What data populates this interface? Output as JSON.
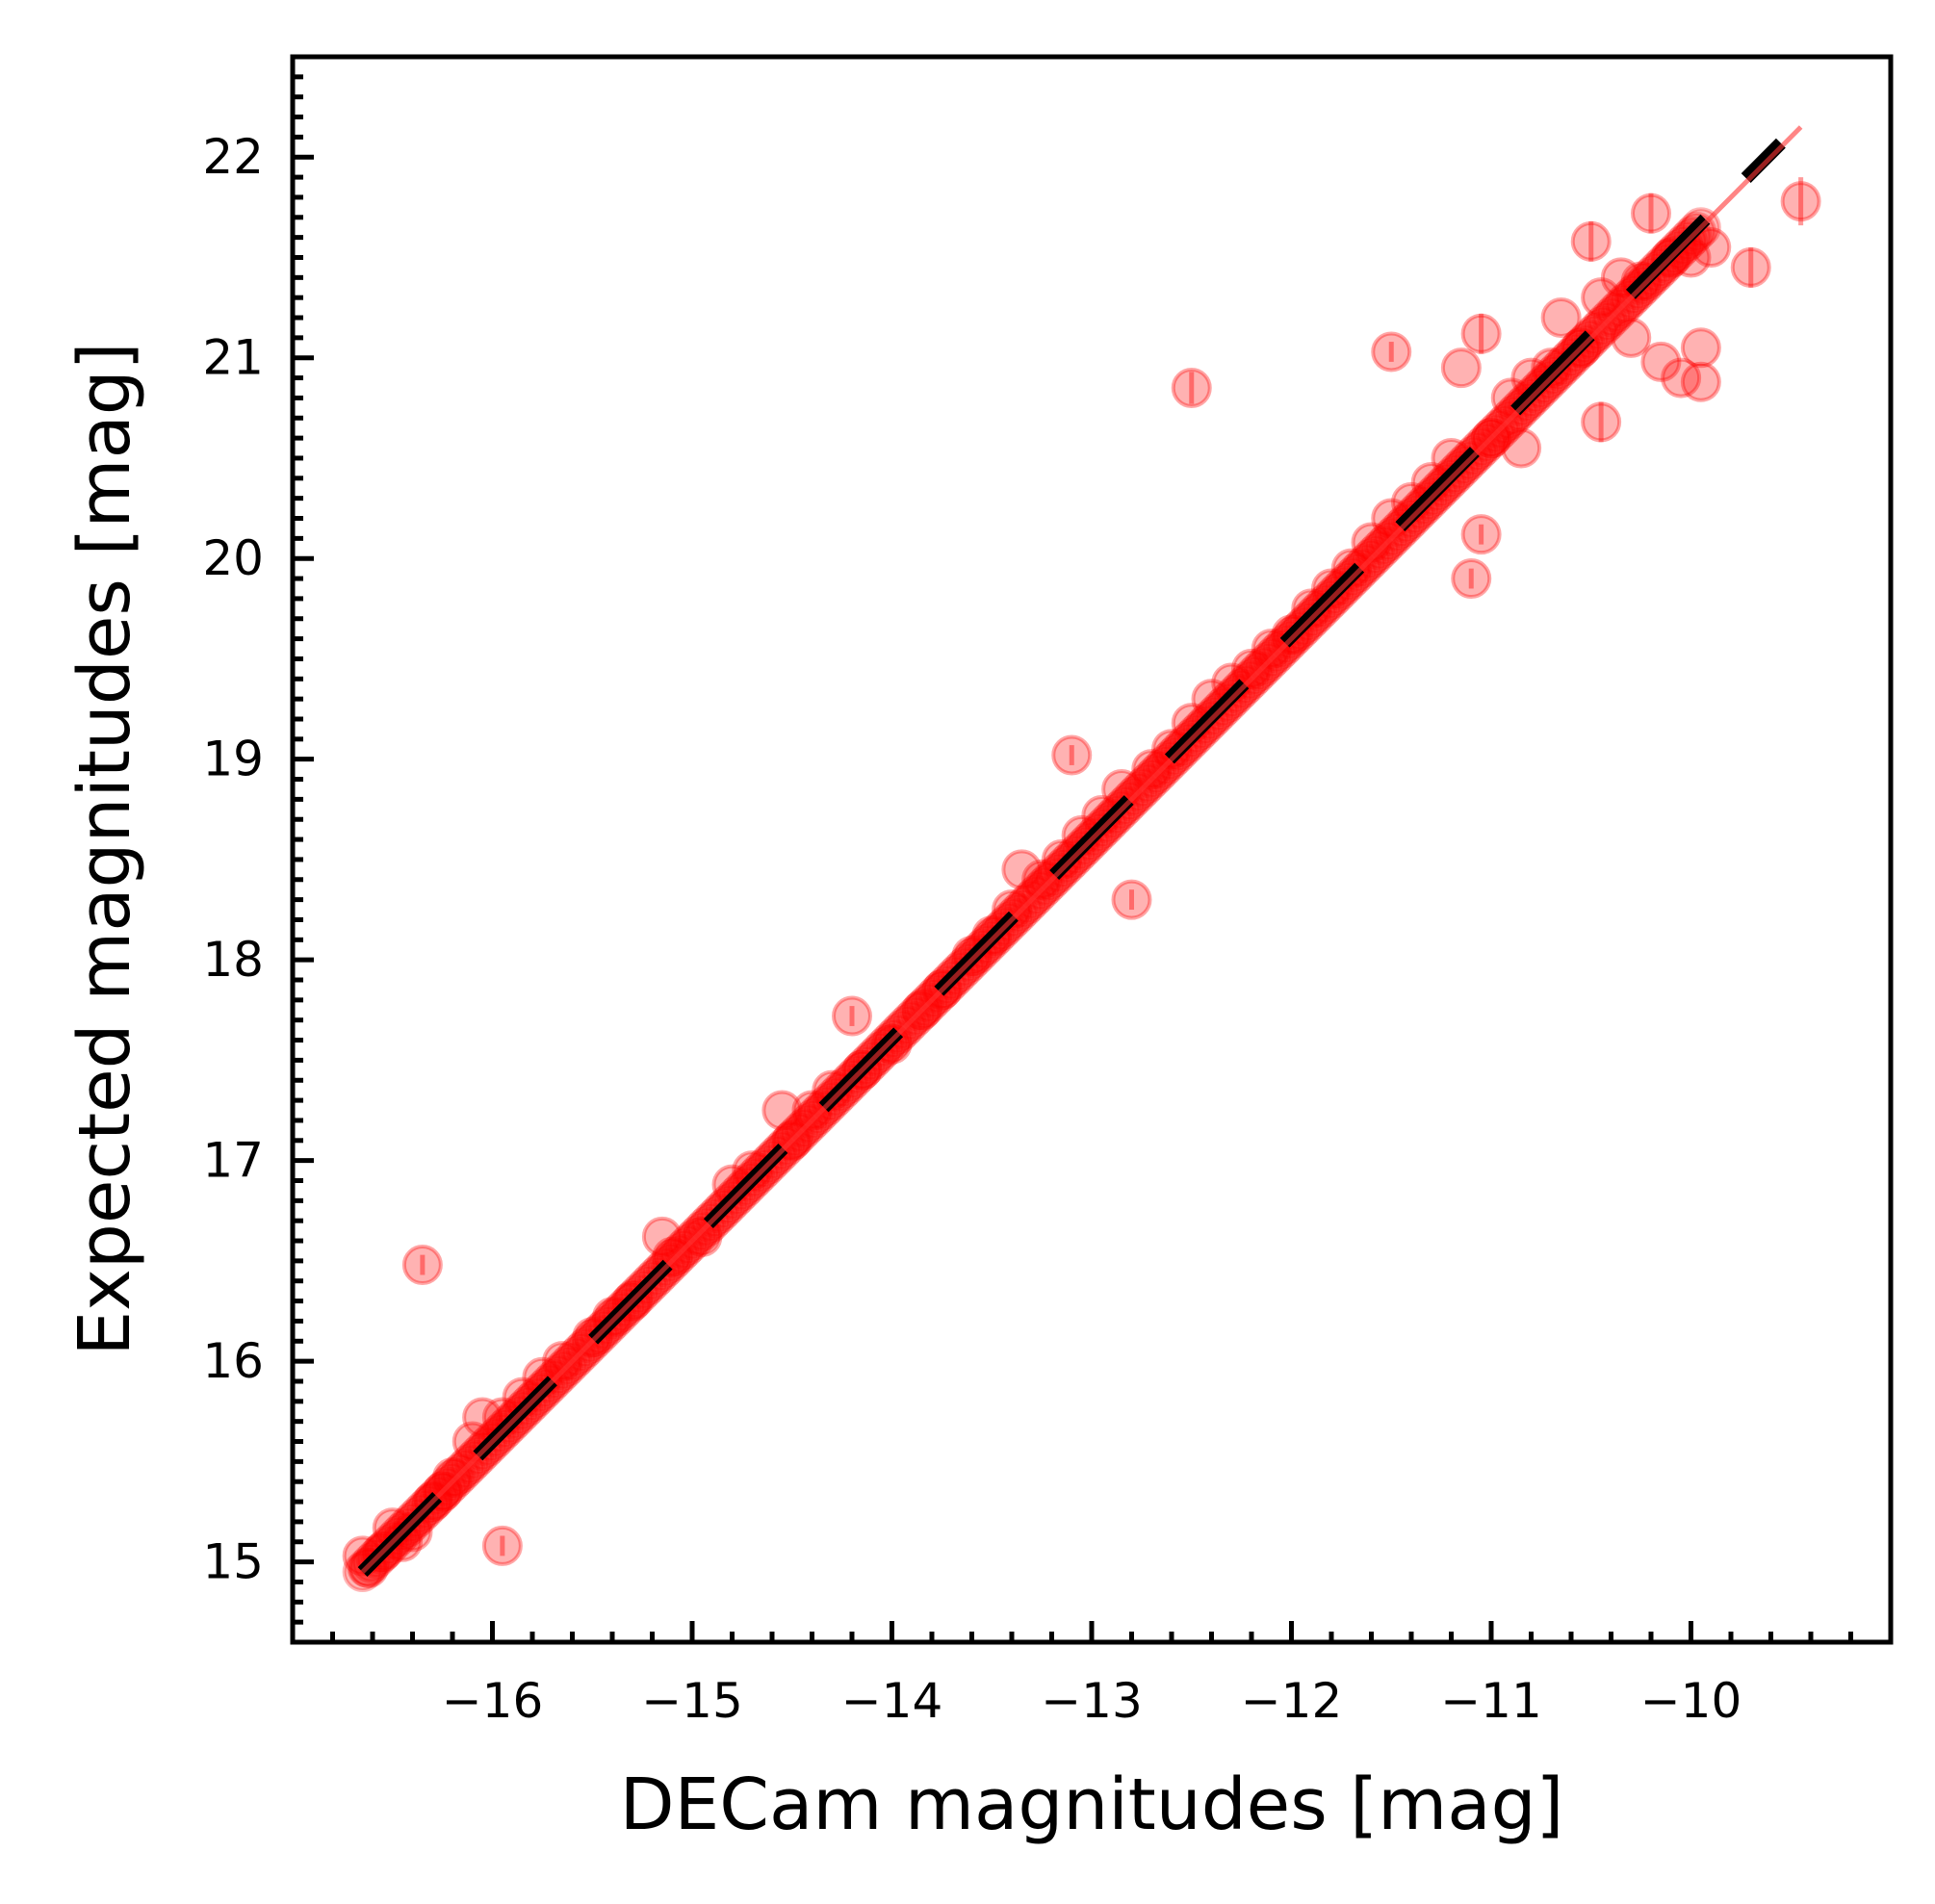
{
  "chart_data": {
    "type": "scatter",
    "xlabel": "DECam magnitudes [mag]",
    "ylabel": "Expected magnitudes [mag]",
    "xlim": [
      -17.0,
      -9.0
    ],
    "ylim": [
      14.6,
      22.5
    ],
    "x_ticks": [
      -16,
      -15,
      -14,
      -13,
      -12,
      -11,
      -10
    ],
    "x_tick_labels": [
      "−16",
      "−15",
      "−14",
      "−13",
      "−12",
      "−11",
      "−10"
    ],
    "y_ticks": [
      15,
      16,
      17,
      18,
      19,
      20,
      21,
      22
    ],
    "y_tick_labels": [
      "15",
      "16",
      "17",
      "18",
      "19",
      "20",
      "21",
      "22"
    ],
    "grid": false,
    "colors": {
      "points": "#ff0000",
      "reference_line": "#000000",
      "fit_line": "#ff3333"
    },
    "reference_line": {
      "style": "dashed",
      "color": "black",
      "x": [
        -16.65,
        -9.55
      ],
      "y": [
        14.95,
        22.07
      ]
    },
    "fit_line": {
      "color": "red",
      "x": [
        -16.65,
        -9.45
      ],
      "y": [
        14.95,
        22.15
      ]
    },
    "series": [
      {
        "marker": "circle",
        "color": "#ff0000",
        "alpha": 0.3,
        "points": [
          {
            "x": -16.65,
            "y": 15.03
          },
          {
            "x": -16.62,
            "y": 14.97
          },
          {
            "x": -16.55,
            "y": 15.05
          },
          {
            "x": -16.5,
            "y": 15.17
          },
          {
            "x": -16.45,
            "y": 15.1
          },
          {
            "x": -16.4,
            "y": 15.15
          },
          {
            "x": -16.35,
            "y": 16.48,
            "yerr": 0.05
          },
          {
            "x": -16.3,
            "y": 15.3
          },
          {
            "x": -16.25,
            "y": 15.35
          },
          {
            "x": -16.2,
            "y": 15.42
          },
          {
            "x": -16.1,
            "y": 15.6
          },
          {
            "x": -16.05,
            "y": 15.72
          },
          {
            "x": -15.95,
            "y": 15.08,
            "yerr": 0.05
          },
          {
            "x": -15.95,
            "y": 15.72
          },
          {
            "x": -15.85,
            "y": 15.82
          },
          {
            "x": -15.75,
            "y": 15.92
          },
          {
            "x": -15.65,
            "y": 16.0
          },
          {
            "x": -15.5,
            "y": 16.12
          },
          {
            "x": -15.4,
            "y": 16.22
          },
          {
            "x": -15.3,
            "y": 16.3
          },
          {
            "x": -15.15,
            "y": 16.62
          },
          {
            "x": -15.1,
            "y": 16.52
          },
          {
            "x": -14.95,
            "y": 16.62
          },
          {
            "x": -14.8,
            "y": 16.88
          },
          {
            "x": -14.7,
            "y": 16.95
          },
          {
            "x": -14.55,
            "y": 17.25
          },
          {
            "x": -14.5,
            "y": 17.1
          },
          {
            "x": -14.4,
            "y": 17.25
          },
          {
            "x": -14.3,
            "y": 17.35
          },
          {
            "x": -14.2,
            "y": 17.72,
            "yerr": 0.05
          },
          {
            "x": -14.15,
            "y": 17.45
          },
          {
            "x": -14.0,
            "y": 17.58
          },
          {
            "x": -13.85,
            "y": 17.75
          },
          {
            "x": -13.75,
            "y": 17.85
          },
          {
            "x": -13.6,
            "y": 18.02
          },
          {
            "x": -13.5,
            "y": 18.12
          },
          {
            "x": -13.4,
            "y": 18.25
          },
          {
            "x": -13.35,
            "y": 18.45
          },
          {
            "x": -13.25,
            "y": 18.4
          },
          {
            "x": -13.15,
            "y": 18.5
          },
          {
            "x": -13.1,
            "y": 19.02,
            "yerr": 0.05
          },
          {
            "x": -13.05,
            "y": 18.62
          },
          {
            "x": -12.95,
            "y": 18.72
          },
          {
            "x": -12.85,
            "y": 18.85
          },
          {
            "x": -12.8,
            "y": 18.3,
            "yerr": 0.05
          },
          {
            "x": -12.7,
            "y": 18.95
          },
          {
            "x": -12.6,
            "y": 19.05
          },
          {
            "x": -12.5,
            "y": 20.85,
            "yerr": 0.08
          },
          {
            "x": -12.5,
            "y": 19.18
          },
          {
            "x": -12.4,
            "y": 19.3
          },
          {
            "x": -12.3,
            "y": 19.38
          },
          {
            "x": -12.2,
            "y": 19.45
          },
          {
            "x": -12.1,
            "y": 19.55
          },
          {
            "x": -12.0,
            "y": 19.62
          },
          {
            "x": -11.9,
            "y": 19.75
          },
          {
            "x": -11.8,
            "y": 19.85
          },
          {
            "x": -11.7,
            "y": 19.95
          },
          {
            "x": -11.6,
            "y": 20.08
          },
          {
            "x": -11.5,
            "y": 21.03,
            "yerr": 0.05
          },
          {
            "x": -11.5,
            "y": 20.2
          },
          {
            "x": -11.4,
            "y": 20.28
          },
          {
            "x": -11.3,
            "y": 20.38
          },
          {
            "x": -11.2,
            "y": 20.5
          },
          {
            "x": -11.1,
            "y": 19.9,
            "yerr": 0.05
          },
          {
            "x": -11.05,
            "y": 20.12,
            "yerr": 0.05
          },
          {
            "x": -11.15,
            "y": 20.95
          },
          {
            "x": -11.05,
            "y": 21.12,
            "yerr": 0.1
          },
          {
            "x": -11.0,
            "y": 20.6
          },
          {
            "x": -10.9,
            "y": 20.8
          },
          {
            "x": -10.85,
            "y": 20.55
          },
          {
            "x": -10.8,
            "y": 20.9
          },
          {
            "x": -10.7,
            "y": 20.95
          },
          {
            "x": -10.65,
            "y": 21.2
          },
          {
            "x": -10.55,
            "y": 21.05
          },
          {
            "x": -10.5,
            "y": 21.58,
            "yerr": 0.1
          },
          {
            "x": -10.45,
            "y": 21.3
          },
          {
            "x": -10.45,
            "y": 20.68,
            "yerr": 0.1
          },
          {
            "x": -10.35,
            "y": 21.4
          },
          {
            "x": -10.3,
            "y": 21.1
          },
          {
            "x": -10.25,
            "y": 21.38
          },
          {
            "x": -10.2,
            "y": 21.72,
            "yerr": 0.1
          },
          {
            "x": -10.15,
            "y": 20.98
          },
          {
            "x": -10.1,
            "y": 21.5
          },
          {
            "x": -10.05,
            "y": 20.9
          },
          {
            "x": -10.0,
            "y": 21.5
          },
          {
            "x": -9.95,
            "y": 21.05
          },
          {
            "x": -9.9,
            "y": 21.55
          },
          {
            "x": -9.95,
            "y": 20.88
          },
          {
            "x": -9.7,
            "y": 21.45,
            "yerr": 0.1
          },
          {
            "x": -9.45,
            "y": 21.78,
            "yerr": 0.12
          }
        ]
      }
    ]
  }
}
